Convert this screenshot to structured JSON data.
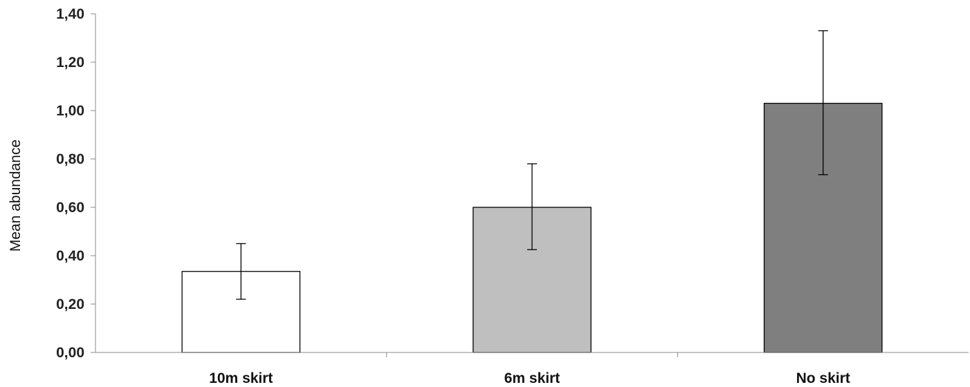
{
  "chart_data": {
    "type": "bar",
    "title": "",
    "xlabel": "",
    "ylabel": "Mean abundance",
    "ylim": [
      0,
      1.4
    ],
    "yticks": [
      "0,00",
      "0,20",
      "0,40",
      "0,60",
      "0,80",
      "1,00",
      "1,20",
      "1,40"
    ],
    "ytick_values": [
      0,
      0.2,
      0.4,
      0.6,
      0.8,
      1.0,
      1.2,
      1.4
    ],
    "grid": false,
    "legend": "none",
    "categories": [
      "10m skirt",
      "6m skirt",
      "No skirt"
    ],
    "values": [
      0.335,
      0.6,
      1.03
    ],
    "error_low": [
      0.22,
      0.425,
      0.735
    ],
    "error_high": [
      0.45,
      0.78,
      1.33
    ],
    "colors": [
      "#ffffff",
      "#bfbfbf",
      "#7f7f7f"
    ],
    "edge_color": "#000000"
  }
}
